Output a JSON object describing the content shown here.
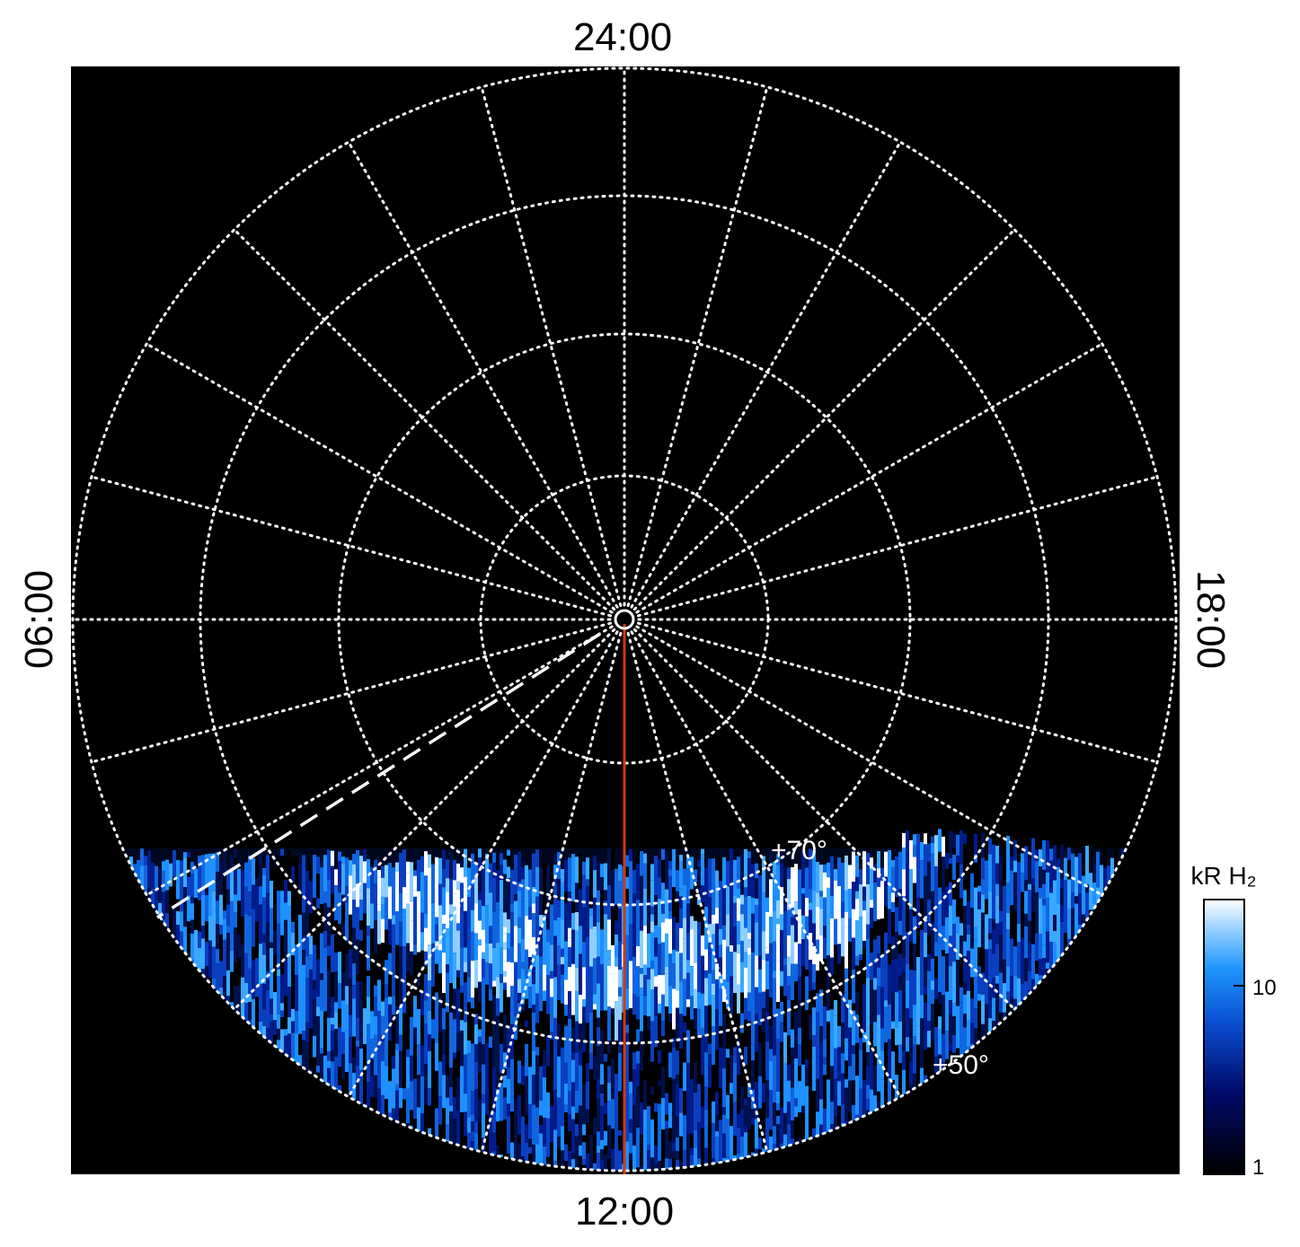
{
  "labels": {
    "top": "24:00",
    "bottom": "12:00",
    "left": "06:00",
    "right": "18:00",
    "lat_inner": "+70°",
    "lat_outer": "+50°"
  },
  "colorbar": {
    "title": "kR H₂",
    "ticks": [
      "10",
      "1"
    ]
  }
}
